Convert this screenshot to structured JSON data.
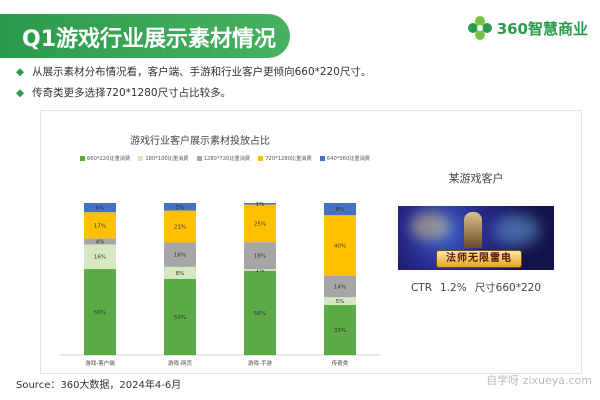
{
  "header": {
    "title": "Q1游戏行业展示素材情况",
    "logo_text": "360智慧商业"
  },
  "bullets": [
    "从展示素材分布情况看，客户端、手游和行业客户更倾向660*220尺寸。",
    "传奇类更多选择720*1280尺寸占比较多。"
  ],
  "chart_data": {
    "type": "bar",
    "stacked": true,
    "title": "游戏行业客户展示素材投放占比",
    "categories": [
      "游戏-客户端",
      "游戏-网页",
      "游戏-手游",
      "传奇类"
    ],
    "series": [
      {
        "name": "660*220比重消费",
        "color": "#5aab45",
        "values": [
          56,
          50,
          56,
          33
        ]
      },
      {
        "name": "180*100比重消费",
        "color": "#d5e8c2",
        "values": [
          16,
          8,
          1,
          5
        ]
      },
      {
        "name": "1280*720比重消费",
        "color": "#a6a6a6",
        "values": [
          4,
          16,
          18,
          14
        ]
      },
      {
        "name": "720*1280比重消费",
        "color": "#ffc000",
        "values": [
          17,
          21,
          25,
          40
        ]
      },
      {
        "name": "640*360比重消费",
        "color": "#4472c4",
        "values": [
          6,
          5,
          1,
          8
        ]
      }
    ],
    "ylim": [
      0,
      100
    ],
    "legend_position": "top"
  },
  "right_panel": {
    "title": "某游戏客户",
    "ad_banner_text": "法师无限雷电",
    "ctr_label": "CTR",
    "ctr_value": "1.2%",
    "size_label": "尺寸660*220"
  },
  "footer": {
    "source": "Source：360大数据，2024年4-6月",
    "watermark": "自学呀 zixueya.com"
  }
}
